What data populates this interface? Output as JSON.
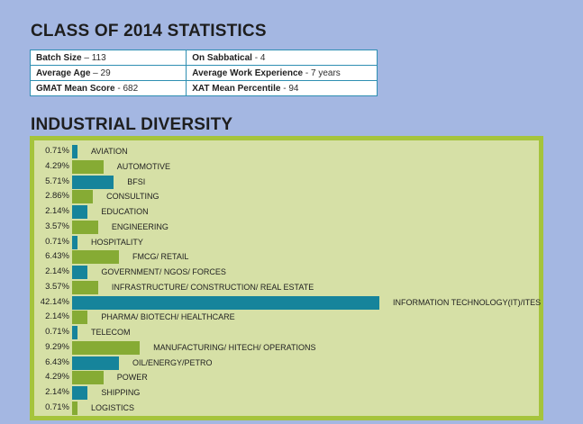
{
  "stats": {
    "title": "CLASS OF 2014 STATISTICS",
    "rows": [
      [
        {
          "label": "Batch Size",
          "value": " – 113"
        },
        {
          "label": "On Sabbatical",
          "value": " - 4"
        }
      ],
      [
        {
          "label": "Average Age",
          "value": " – 29"
        },
        {
          "label": "Average Work Experience",
          "value": " - 7 years"
        }
      ],
      [
        {
          "label": "GMAT Mean Score",
          "value": " - 682"
        },
        {
          "label": "XAT Mean Percentile",
          "value": " - 94"
        }
      ]
    ]
  },
  "chart_data": {
    "type": "bar",
    "orientation": "horizontal",
    "title": "INDUSTRIAL DIVERSITY",
    "categories": [
      "AVIATION",
      "AUTOMOTIVE",
      "BFSI",
      "CONSULTING",
      "EDUCATION",
      "ENGINEERING",
      "HOSPITALITY",
      "FMCG/ RETAIL",
      "GOVERNMENT/ NGOS/ FORCES",
      "INFRASTRUCTURE/ CONSTRUCTION/ REAL ESTATE",
      "INFORMATION TECHNOLOGY(IT)/ITES",
      "PHARMA/ BIOTECH/ HEALTHCARE",
      "TELECOM",
      "MANUFACTURING/ HITECH/ OPERATIONS",
      "OIL/ENERGY/PETRO",
      "POWER",
      "SHIPPING",
      "LOGISTICS"
    ],
    "values": [
      0.71,
      4.29,
      5.71,
      2.86,
      2.14,
      3.57,
      0.71,
      6.43,
      2.14,
      3.57,
      42.14,
      2.14,
      0.71,
      9.29,
      6.43,
      4.29,
      2.14,
      0.71
    ],
    "value_labels": [
      "0.71%",
      "4.29%",
      "5.71%",
      "2.86%",
      "2.14%",
      "3.57%",
      "0.71%",
      "6.43%",
      "2.14%",
      "3.57%",
      "42.14%",
      "2.14%",
      "0.71%",
      "9.29%",
      "6.43%",
      "4.29%",
      "2.14%",
      "0.71%"
    ],
    "bar_colors": [
      "teal",
      "green",
      "teal",
      "green",
      "teal",
      "green",
      "teal",
      "green",
      "teal",
      "green",
      "teal",
      "green",
      "teal",
      "green",
      "teal",
      "green",
      "teal",
      "green"
    ],
    "colors": {
      "teal": "#16849b",
      "green": "#86ab34",
      "frame": "#a5c43c",
      "plot_bg": "#d6e0a6"
    },
    "grid": false,
    "legend": "none"
  }
}
